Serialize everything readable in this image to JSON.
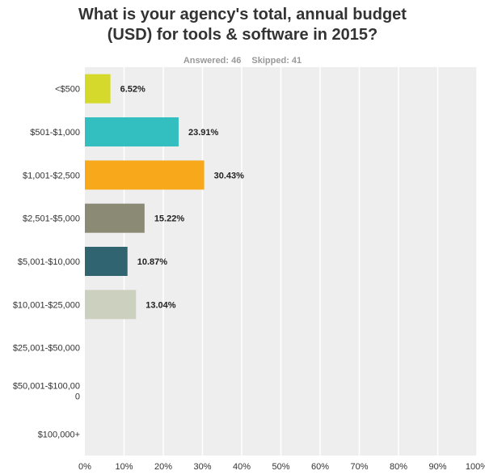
{
  "header": {
    "title_line1": "What is your agency's total, annual budget",
    "title_line2": "(USD) for tools & software in 2015?",
    "answered_label": "Answered: 46",
    "skipped_label": "Skipped: 41"
  },
  "chart_data": {
    "type": "bar",
    "orientation": "horizontal",
    "categories": [
      "<$500",
      "$501-$1,000",
      "$1,001-$2,500",
      "$2,501-$5,000",
      "$5,001-$10,000",
      "$10,001-$25,000",
      "$25,001-$50,000",
      "$50,001-$100,000",
      "$100,000+"
    ],
    "category_label_lines": [
      [
        "<$500"
      ],
      [
        "$501-$1,000"
      ],
      [
        "$1,001-$2,500"
      ],
      [
        "$2,501-$5,000"
      ],
      [
        "$5,001-$10,000"
      ],
      [
        "$10,001-$25,000"
      ],
      [
        "$25,001-$50,000"
      ],
      [
        "$50,001-$100,00",
        "0"
      ],
      [
        "$100,000+"
      ]
    ],
    "values": [
      6.52,
      23.91,
      30.43,
      15.22,
      10.87,
      13.04,
      0,
      0,
      0
    ],
    "value_labels": [
      "6.52%",
      "23.91%",
      "30.43%",
      "15.22%",
      "10.87%",
      "13.04%",
      "",
      "",
      ""
    ],
    "colors": [
      "#d4d92b",
      "#33bfbf",
      "#f7a81b",
      "#8a8a75",
      "#2f6470",
      "#ccd0be",
      "#cccccc",
      "#cccccc",
      "#cccccc"
    ],
    "xlim": [
      0,
      100
    ],
    "x_ticks": [
      0,
      10,
      20,
      30,
      40,
      50,
      60,
      70,
      80,
      90,
      100
    ],
    "x_tick_labels": [
      "0%",
      "10%",
      "20%",
      "30%",
      "40%",
      "50%",
      "60%",
      "70%",
      "80%",
      "90%",
      "100%"
    ],
    "grid": true,
    "plot_background": "#eeeeee",
    "grid_color": "#ffffff"
  }
}
